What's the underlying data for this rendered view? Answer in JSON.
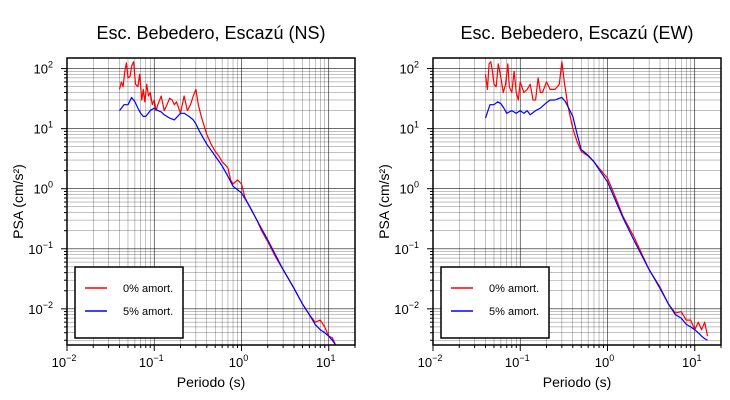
{
  "chart_data": [
    {
      "type": "line",
      "title": "Esc. Bebedero, Escazú (NS)",
      "xlabel": "Periodo (s)",
      "ylabel": "PSA (cm/s²)",
      "xscale": "log",
      "yscale": "log",
      "xlim": [
        0.01,
        20
      ],
      "ylim": [
        0.0025,
        150
      ],
      "grid": true,
      "xticks": [
        {
          "b": "10",
          "e": "−2",
          "v": 0.01
        },
        {
          "b": "10",
          "e": "−1",
          "v": 0.1
        },
        {
          "b": "10",
          "e": "0",
          "v": 1
        },
        {
          "b": "10",
          "e": "1",
          "v": 10
        }
      ],
      "yticks": [
        {
          "b": "10",
          "e": "−2",
          "v": 0.01
        },
        {
          "b": "10",
          "e": "−1",
          "v": 0.1
        },
        {
          "b": "10",
          "e": "0",
          "v": 1
        },
        {
          "b": "10",
          "e": "1",
          "v": 10
        },
        {
          "b": "10",
          "e": "2",
          "v": 100
        }
      ],
      "legend_position": "bottom-left",
      "series": [
        {
          "name": "0% amort.",
          "color": "#ff0000",
          "x": [
            0.04,
            0.042,
            0.044,
            0.046,
            0.048,
            0.05,
            0.053,
            0.055,
            0.058,
            0.061,
            0.065,
            0.068,
            0.072,
            0.075,
            0.078,
            0.082,
            0.086,
            0.09,
            0.095,
            0.1,
            0.105,
            0.11,
            0.12,
            0.13,
            0.14,
            0.15,
            0.16,
            0.17,
            0.18,
            0.2,
            0.22,
            0.24,
            0.26,
            0.28,
            0.3,
            0.32,
            0.35,
            0.4,
            0.45,
            0.5,
            0.55,
            0.6,
            0.65,
            0.7,
            0.75,
            0.8,
            0.9,
            1.0,
            1.1,
            1.2,
            1.3,
            1.5,
            1.7,
            2.0,
            2.5,
            3.0,
            4.0,
            5.0,
            6.0,
            7.0,
            8.0,
            9.0,
            10.0,
            11.0,
            12.0
          ],
          "y": [
            45,
            60,
            50,
            90,
            125,
            70,
            75,
            110,
            130,
            55,
            50,
            80,
            30,
            45,
            28,
            55,
            35,
            40,
            25,
            30,
            20,
            25,
            35,
            20,
            25,
            32,
            30,
            25,
            28,
            18,
            35,
            20,
            25,
            35,
            45,
            25,
            15,
            8,
            5.5,
            4.2,
            3.5,
            2.8,
            2.5,
            2.2,
            1.4,
            1.2,
            1.4,
            1.2,
            0.7,
            0.55,
            0.45,
            0.3,
            0.2,
            0.13,
            0.07,
            0.045,
            0.022,
            0.012,
            0.008,
            0.006,
            0.0065,
            0.005,
            0.0035,
            0.0033,
            0.0025
          ]
        },
        {
          "name": "5% amort.",
          "color": "#0000ff",
          "x": [
            0.04,
            0.045,
            0.05,
            0.055,
            0.06,
            0.065,
            0.07,
            0.075,
            0.08,
            0.09,
            0.1,
            0.11,
            0.12,
            0.13,
            0.15,
            0.17,
            0.2,
            0.22,
            0.25,
            0.28,
            0.3,
            0.33,
            0.4,
            0.5,
            0.6,
            0.7,
            0.8,
            1.0,
            1.2,
            1.5,
            2.0,
            3.0,
            4.0,
            5.0,
            6.0,
            7.0,
            8.0,
            9.0,
            10.0,
            11.0,
            12.0
          ],
          "y": [
            20,
            25,
            25,
            33,
            28,
            22,
            18,
            16,
            16,
            20,
            22,
            20,
            19,
            17,
            15,
            14,
            18,
            18,
            16,
            14,
            12,
            9,
            5.5,
            3.5,
            2.4,
            1.6,
            1.1,
            0.85,
            0.55,
            0.3,
            0.14,
            0.045,
            0.022,
            0.012,
            0.008,
            0.0055,
            0.0045,
            0.004,
            0.0035,
            0.003,
            0.0025
          ]
        }
      ]
    },
    {
      "type": "line",
      "title": "Esc. Bebedero, Escazú (EW)",
      "xlabel": "Periodo (s)",
      "ylabel": "PSA (cm/s²)",
      "xscale": "log",
      "yscale": "log",
      "xlim": [
        0.01,
        20
      ],
      "ylim": [
        0.0025,
        150
      ],
      "grid": true,
      "xticks": [
        {
          "b": "10",
          "e": "−2",
          "v": 0.01
        },
        {
          "b": "10",
          "e": "−1",
          "v": 0.1
        },
        {
          "b": "10",
          "e": "0",
          "v": 1
        },
        {
          "b": "10",
          "e": "1",
          "v": 10
        }
      ],
      "yticks": [
        {
          "b": "10",
          "e": "−2",
          "v": 0.01
        },
        {
          "b": "10",
          "e": "−1",
          "v": 0.1
        },
        {
          "b": "10",
          "e": "0",
          "v": 1
        },
        {
          "b": "10",
          "e": "1",
          "v": 10
        },
        {
          "b": "10",
          "e": "2",
          "v": 100
        }
      ],
      "legend_position": "bottom-left",
      "series": [
        {
          "name": "0% amort.",
          "color": "#ff0000",
          "x": [
            0.04,
            0.042,
            0.044,
            0.046,
            0.048,
            0.05,
            0.053,
            0.056,
            0.06,
            0.064,
            0.068,
            0.072,
            0.075,
            0.08,
            0.085,
            0.09,
            0.095,
            0.1,
            0.11,
            0.12,
            0.13,
            0.14,
            0.15,
            0.16,
            0.17,
            0.18,
            0.2,
            0.22,
            0.25,
            0.28,
            0.3,
            0.32,
            0.35,
            0.4,
            0.45,
            0.5,
            0.55,
            0.6,
            0.7,
            0.8,
            1.0,
            1.2,
            1.5,
            2.0,
            3.0,
            4.0,
            5.0,
            6.0,
            7.0,
            8.0,
            9.0,
            10.0,
            11.0,
            12.0,
            13.0,
            14.0
          ],
          "y": [
            80,
            45,
            120,
            130,
            90,
            55,
            50,
            120,
            70,
            40,
            55,
            120,
            50,
            40,
            90,
            40,
            30,
            60,
            40,
            45,
            55,
            30,
            30,
            70,
            40,
            40,
            60,
            45,
            45,
            55,
            130,
            60,
            25,
            10,
            6,
            4.2,
            3.8,
            3.5,
            2.8,
            2.2,
            1.5,
            0.8,
            0.35,
            0.16,
            0.045,
            0.023,
            0.012,
            0.0085,
            0.009,
            0.0065,
            0.0065,
            0.0045,
            0.006,
            0.0045,
            0.006,
            0.0035
          ]
        },
        {
          "name": "5% amort.",
          "color": "#0000ff",
          "x": [
            0.04,
            0.045,
            0.05,
            0.055,
            0.06,
            0.065,
            0.07,
            0.08,
            0.09,
            0.1,
            0.11,
            0.12,
            0.13,
            0.15,
            0.17,
            0.2,
            0.22,
            0.25,
            0.28,
            0.3,
            0.33,
            0.4,
            0.45,
            0.5,
            0.55,
            0.6,
            0.7,
            0.8,
            1.0,
            1.2,
            1.5,
            2.0,
            3.0,
            4.0,
            5.0,
            6.0,
            7.0,
            8.0,
            9.0,
            10.0,
            11.0,
            12.0,
            13.0,
            14.0
          ],
          "y": [
            15,
            25,
            25,
            28,
            26,
            22,
            18,
            20,
            18,
            20,
            18,
            20,
            17,
            20,
            22,
            27,
            30,
            30,
            32,
            33,
            28,
            16,
            8,
            4.5,
            4.0,
            3.6,
            2.8,
            2.1,
            1.3,
            0.7,
            0.33,
            0.14,
            0.045,
            0.022,
            0.012,
            0.008,
            0.007,
            0.0055,
            0.005,
            0.0045,
            0.004,
            0.0035,
            0.0032,
            0.003
          ]
        }
      ]
    }
  ]
}
